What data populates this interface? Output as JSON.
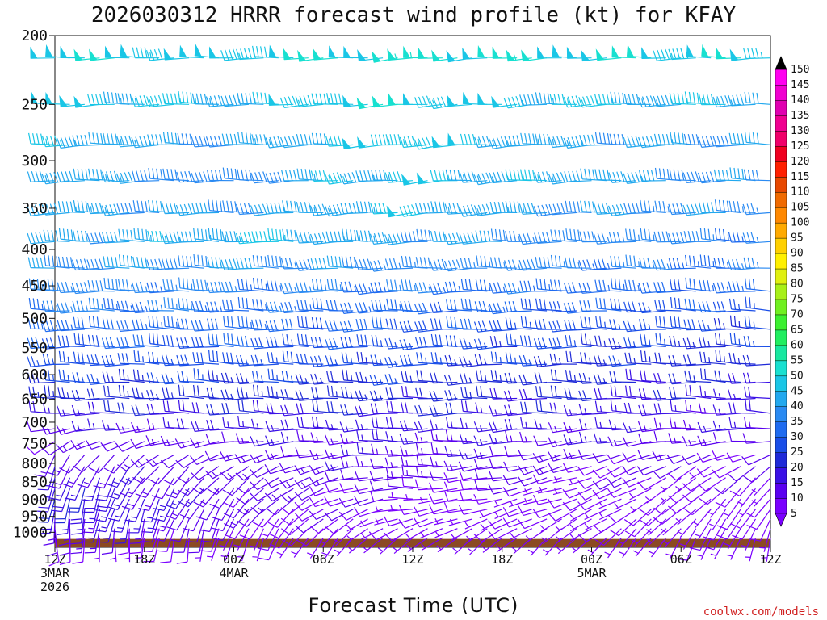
{
  "chart_data": {
    "type": "wind_barb_time_height",
    "title": "2026030312 HRRR forecast wind profile (kt) for KFAY",
    "xlabel": "Forecast Time (UTC)",
    "credit": "coolwx.com/models",
    "x_range_hours": [
      0,
      48
    ],
    "x_ticks": [
      {
        "hour": 0,
        "lines": [
          "12Z",
          "3MAR",
          "2026"
        ]
      },
      {
        "hour": 6,
        "lines": [
          "18Z"
        ]
      },
      {
        "hour": 12,
        "lines": [
          "00Z",
          "4MAR"
        ]
      },
      {
        "hour": 18,
        "lines": [
          "06Z"
        ]
      },
      {
        "hour": 24,
        "lines": [
          "12Z"
        ]
      },
      {
        "hour": 30,
        "lines": [
          "18Z"
        ]
      },
      {
        "hour": 36,
        "lines": [
          "00Z",
          "5MAR"
        ]
      },
      {
        "hour": 42,
        "lines": [
          "06Z"
        ]
      },
      {
        "hour": 48,
        "lines": [
          "12Z"
        ]
      }
    ],
    "y_axis": {
      "unit": "hPa",
      "range": [
        200,
        1050
      ],
      "scale": "log-pressure",
      "ticks": [
        200,
        250,
        300,
        350,
        400,
        450,
        500,
        550,
        600,
        650,
        700,
        750,
        800,
        850,
        900,
        950,
        1000
      ]
    },
    "colorbar": {
      "unit": "kt",
      "labels": [
        5,
        10,
        15,
        20,
        25,
        30,
        35,
        40,
        45,
        50,
        55,
        60,
        65,
        70,
        75,
        80,
        85,
        90,
        95,
        100,
        105,
        110,
        115,
        120,
        125,
        130,
        135,
        140,
        145,
        150
      ],
      "colors": [
        "#7a00ff",
        "#5a00f0",
        "#3a10e6",
        "#1f2ad8",
        "#1a4ee8",
        "#1f6bf0",
        "#2a8af2",
        "#22a8ee",
        "#1ac6e6",
        "#18e0d0",
        "#18e8a0",
        "#20ee60",
        "#3cf030",
        "#70f020",
        "#a8f018",
        "#e0f010",
        "#fff000",
        "#ffd000",
        "#ffaa00",
        "#ff8800",
        "#f06a00",
        "#e84800",
        "#ff2000",
        "#f00020",
        "#f0006a",
        "#f00090",
        "#e000b0",
        "#f000d0",
        "#ff00f0"
      ]
    },
    "levels_hpa": [
      215,
      250,
      285,
      320,
      355,
      390,
      425,
      458,
      488,
      518,
      548,
      580,
      615,
      648,
      680,
      715,
      745,
      778,
      808,
      838,
      868,
      898,
      928,
      958,
      988,
      1018
    ],
    "profile": [
      {
        "level": 215,
        "time_hours": [
          0,
          12,
          24,
          36,
          48
        ],
        "speed_kt": [
          50,
          47,
          52,
          50,
          48
        ],
        "dir_deg": [
          268,
          270,
          265,
          268,
          270
        ]
      },
      {
        "level": 250,
        "time_hours": [
          0,
          12,
          24,
          36,
          48
        ],
        "speed_kt": [
          48,
          44,
          50,
          45,
          44
        ],
        "dir_deg": [
          268,
          270,
          265,
          268,
          270
        ]
      },
      {
        "level": 285,
        "time_hours": [
          0,
          12,
          24,
          36,
          48
        ],
        "speed_kt": [
          45,
          40,
          48,
          42,
          40
        ],
        "dir_deg": [
          268,
          270,
          265,
          268,
          270
        ]
      },
      {
        "level": 320,
        "time_hours": [
          0,
          12,
          24,
          36,
          48
        ],
        "speed_kt": [
          44,
          38,
          47,
          42,
          38
        ],
        "dir_deg": [
          268,
          270,
          265,
          268,
          270
        ]
      },
      {
        "level": 355,
        "time_hours": [
          0,
          12,
          24,
          36,
          48
        ],
        "speed_kt": [
          42,
          40,
          46,
          40,
          38
        ],
        "dir_deg": [
          268,
          270,
          265,
          268,
          270
        ]
      },
      {
        "level": 390,
        "time_hours": [
          0,
          12,
          24,
          36,
          48
        ],
        "speed_kt": [
          40,
          45,
          42,
          38,
          36
        ],
        "dir_deg": [
          270,
          272,
          268,
          270,
          272
        ]
      },
      {
        "level": 425,
        "time_hours": [
          0,
          12,
          24,
          36,
          48
        ],
        "speed_kt": [
          40,
          40,
          38,
          36,
          34
        ],
        "dir_deg": [
          270,
          272,
          268,
          270,
          272
        ]
      },
      {
        "level": 458,
        "time_hours": [
          0,
          12,
          24,
          36,
          48
        ],
        "speed_kt": [
          38,
          36,
          35,
          33,
          31
        ],
        "dir_deg": [
          270,
          272,
          268,
          270,
          272
        ]
      },
      {
        "level": 488,
        "time_hours": [
          0,
          12,
          24,
          36,
          48
        ],
        "speed_kt": [
          36,
          34,
          32,
          30,
          28
        ],
        "dir_deg": [
          270,
          272,
          268,
          270,
          272
        ]
      },
      {
        "level": 518,
        "time_hours": [
          0,
          12,
          24,
          36,
          48
        ],
        "speed_kt": [
          33,
          32,
          30,
          28,
          26
        ],
        "dir_deg": [
          270,
          272,
          268,
          270,
          272
        ]
      },
      {
        "level": 548,
        "time_hours": [
          0,
          12,
          24,
          36,
          48
        ],
        "speed_kt": [
          30,
          30,
          28,
          26,
          24
        ],
        "dir_deg": [
          270,
          272,
          268,
          270,
          272
        ]
      },
      {
        "level": 580,
        "time_hours": [
          0,
          12,
          24,
          36,
          48
        ],
        "speed_kt": [
          28,
          28,
          26,
          24,
          22
        ],
        "dir_deg": [
          270,
          272,
          268,
          270,
          272
        ]
      },
      {
        "level": 615,
        "time_hours": [
          0,
          12,
          24,
          36,
          48
        ],
        "speed_kt": [
          25,
          25,
          24,
          22,
          20
        ],
        "dir_deg": [
          270,
          272,
          268,
          270,
          272
        ]
      },
      {
        "level": 648,
        "time_hours": [
          0,
          12,
          24,
          36,
          48
        ],
        "speed_kt": [
          22,
          23,
          22,
          20,
          18
        ],
        "dir_deg": [
          270,
          272,
          268,
          270,
          272
        ]
      },
      {
        "level": 680,
        "time_hours": [
          0,
          12,
          24,
          36,
          48
        ],
        "speed_kt": [
          18,
          20,
          20,
          18,
          16
        ],
        "dir_deg": [
          268,
          272,
          268,
          270,
          272
        ]
      },
      {
        "level": 715,
        "time_hours": [
          0,
          12,
          24,
          36,
          48
        ],
        "speed_kt": [
          14,
          17,
          18,
          16,
          14
        ],
        "dir_deg": [
          260,
          270,
          268,
          266,
          268
        ]
      },
      {
        "level": 745,
        "time_hours": [
          0,
          12,
          24,
          36,
          48
        ],
        "speed_kt": [
          10,
          14,
          16,
          14,
          12
        ],
        "dir_deg": [
          240,
          262,
          270,
          262,
          265
        ]
      },
      {
        "level": 778,
        "time_hours": [
          0,
          12,
          24,
          36,
          48
        ],
        "speed_kt": [
          12,
          12,
          15,
          12,
          10
        ],
        "dir_deg": [
          210,
          250,
          272,
          255,
          250
        ]
      },
      {
        "level": 808,
        "time_hours": [
          0,
          12,
          24,
          36,
          48
        ],
        "speed_kt": [
          15,
          12,
          14,
          10,
          9
        ],
        "dir_deg": [
          200,
          235,
          272,
          250,
          235
        ]
      },
      {
        "level": 838,
        "time_hours": [
          0,
          12,
          24,
          36,
          48
        ],
        "speed_kt": [
          18,
          12,
          12,
          9,
          8
        ],
        "dir_deg": [
          195,
          225,
          272,
          250,
          225
        ]
      },
      {
        "level": 868,
        "time_hours": [
          0,
          12,
          24,
          36,
          48
        ],
        "speed_kt": [
          20,
          12,
          10,
          8,
          8
        ],
        "dir_deg": [
          192,
          220,
          272,
          250,
          220
        ]
      },
      {
        "level": 898,
        "time_hours": [
          0,
          12,
          24,
          36,
          48
        ],
        "speed_kt": [
          20,
          12,
          8,
          8,
          8
        ],
        "dir_deg": [
          190,
          215,
          268,
          248,
          215
        ]
      },
      {
        "level": 928,
        "time_hours": [
          0,
          12,
          24,
          36,
          48
        ],
        "speed_kt": [
          18,
          11,
          8,
          8,
          8
        ],
        "dir_deg": [
          188,
          210,
          262,
          245,
          210
        ]
      },
      {
        "level": 958,
        "time_hours": [
          0,
          12,
          24,
          36,
          48
        ],
        "speed_kt": [
          16,
          10,
          7,
          7,
          8
        ],
        "dir_deg": [
          185,
          205,
          255,
          240,
          205
        ]
      },
      {
        "level": 988,
        "time_hours": [
          0,
          12,
          24,
          36,
          48
        ],
        "speed_kt": [
          12,
          8,
          6,
          6,
          7
        ],
        "dir_deg": [
          180,
          200,
          245,
          235,
          200
        ]
      },
      {
        "level": 1018,
        "time_hours": [
          0,
          12,
          24,
          36,
          48
        ],
        "speed_kt": [
          8,
          6,
          5,
          5,
          6
        ],
        "dir_deg": [
          175,
          195,
          235,
          225,
          195
        ]
      }
    ],
    "times_step_hours": 1,
    "terrain_fill_color": "#8b4a22"
  }
}
